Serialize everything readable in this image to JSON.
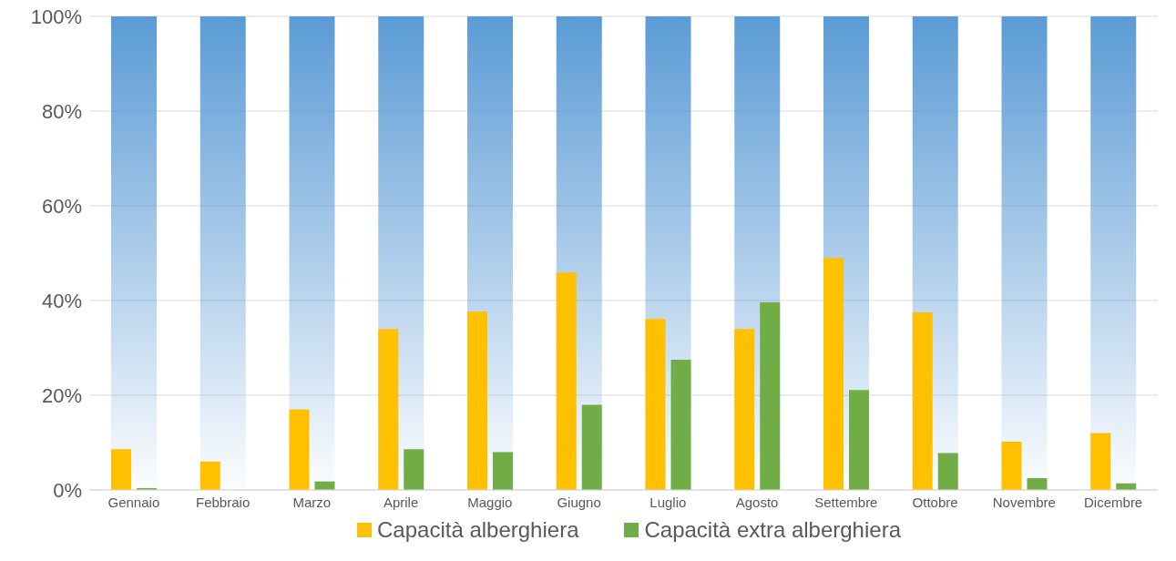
{
  "chart_data": {
    "type": "bar",
    "categories": [
      "Gennaio",
      "Febbraio",
      "Marzo",
      "Aprile",
      "Maggio",
      "Giugno",
      "Luglio",
      "Agosto",
      "Settembre",
      "Ottobre",
      "Novembre",
      "Dicembre"
    ],
    "series": [
      {
        "color": "#5b9bd5",
        "values": [
          100,
          100,
          100,
          100,
          100,
          100,
          100,
          100,
          100,
          100,
          100,
          100
        ]
      },
      {
        "name": "Capacità alberghiera",
        "color": "#ffc000",
        "values": [
          8.6,
          6,
          17,
          34,
          37.7,
          45.9,
          36.1,
          34,
          49,
          37.5,
          10.2,
          12
        ]
      },
      {
        "name": "Capacità extra alberghiera",
        "color": "#70ad47",
        "values": [
          0.4,
          0,
          1.8,
          8.6,
          8,
          18,
          27.5,
          39.6,
          21.1,
          7.8,
          2.5,
          1.4
        ]
      }
    ],
    "ylim": [
      0,
      100
    ],
    "yticks": [
      {
        "value": 0,
        "label": "0%"
      },
      {
        "value": 20,
        "label": "20%"
      },
      {
        "value": 40,
        "label": "40%"
      },
      {
        "value": 60,
        "label": "60%"
      },
      {
        "value": 80,
        "label": "80%"
      },
      {
        "value": 100,
        "label": "100%"
      }
    ],
    "grid": "y",
    "legend": "bottom"
  }
}
